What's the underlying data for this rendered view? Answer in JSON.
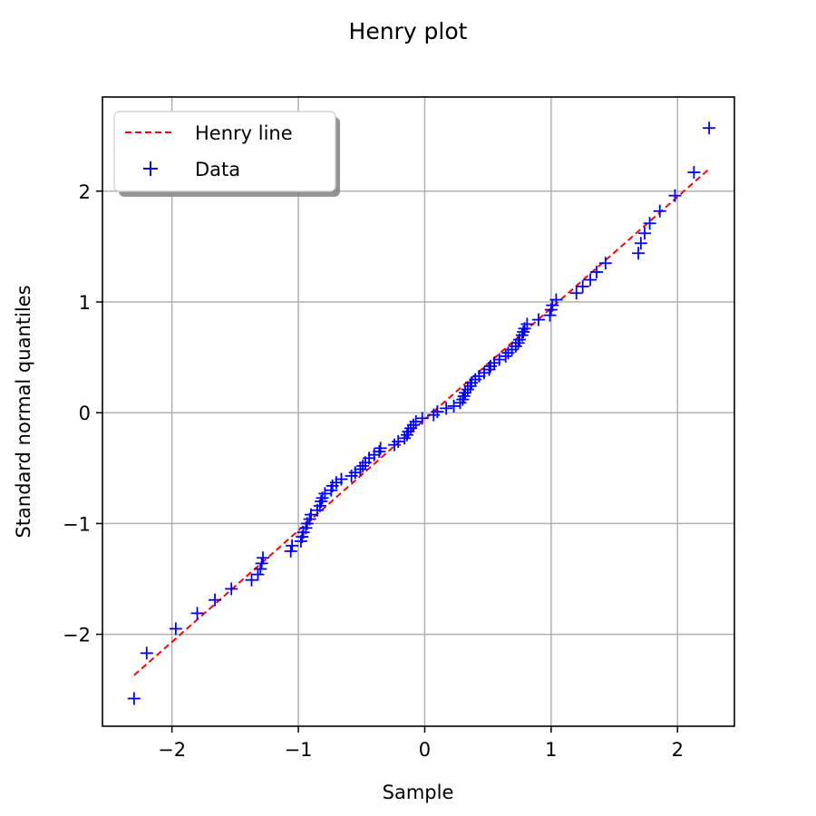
{
  "chart_data": {
    "type": "scatter",
    "title": "Henry plot",
    "xlabel": "Sample",
    "ylabel": "Standard normal quantiles",
    "xlim": [
      -2.55,
      2.45
    ],
    "ylim": [
      -2.83,
      2.85
    ],
    "xticks": [
      -2,
      -1,
      0,
      1,
      2
    ],
    "yticks": [
      -2,
      -1,
      0,
      1,
      2
    ],
    "xtick_labels": [
      "−2",
      "−1",
      "0",
      "1",
      "2"
    ],
    "ytick_labels": [
      "−2",
      "−1",
      "0",
      "1",
      "2"
    ],
    "grid": true,
    "legend_position": "top-left",
    "legend": [
      {
        "label": "Henry line",
        "style": "dashed-line",
        "color": "#ff0000"
      },
      {
        "label": "Data",
        "style": "plus-marker",
        "color": "#0000ff"
      }
    ],
    "henry_line": {
      "x": [
        -2.3,
        2.25
      ],
      "y": [
        -2.37,
        2.2
      ]
    },
    "series": [
      {
        "name": "Data",
        "marker": "+",
        "color": "#0000ff",
        "points": [
          [
            -2.3,
            -2.58
          ],
          [
            -2.2,
            -2.17
          ],
          [
            -1.97,
            -1.95
          ],
          [
            -1.8,
            -1.81
          ],
          [
            -1.66,
            -1.69
          ],
          [
            -1.53,
            -1.59
          ],
          [
            -1.37,
            -1.51
          ],
          [
            -1.32,
            -1.46
          ],
          [
            -1.3,
            -1.41
          ],
          [
            -1.29,
            -1.36
          ],
          [
            -1.28,
            -1.31
          ],
          [
            -1.06,
            -1.25
          ],
          [
            -1.05,
            -1.2
          ],
          [
            -0.98,
            -1.16
          ],
          [
            -0.97,
            -1.12
          ],
          [
            -0.96,
            -1.08
          ],
          [
            -0.94,
            -1.04
          ],
          [
            -0.93,
            -1.0
          ],
          [
            -0.91,
            -0.96
          ],
          [
            -0.9,
            -0.92
          ],
          [
            -0.85,
            -0.88
          ],
          [
            -0.83,
            -0.84
          ],
          [
            -0.82,
            -0.8
          ],
          [
            -0.81,
            -0.77
          ],
          [
            -0.79,
            -0.73
          ],
          [
            -0.74,
            -0.7
          ],
          [
            -0.73,
            -0.66
          ],
          [
            -0.7,
            -0.63
          ],
          [
            -0.66,
            -0.6
          ],
          [
            -0.58,
            -0.57
          ],
          [
            -0.55,
            -0.54
          ],
          [
            -0.51,
            -0.51
          ],
          [
            -0.49,
            -0.48
          ],
          [
            -0.47,
            -0.45
          ],
          [
            -0.44,
            -0.41
          ],
          [
            -0.4,
            -0.38
          ],
          [
            -0.36,
            -0.35
          ],
          [
            -0.35,
            -0.32
          ],
          [
            -0.24,
            -0.29
          ],
          [
            -0.21,
            -0.26
          ],
          [
            -0.16,
            -0.23
          ],
          [
            -0.14,
            -0.2
          ],
          [
            -0.13,
            -0.17
          ],
          [
            -0.11,
            -0.14
          ],
          [
            -0.09,
            -0.11
          ],
          [
            -0.07,
            -0.08
          ],
          [
            -0.02,
            -0.05
          ],
          [
            0.07,
            -0.02
          ],
          [
            0.1,
            0.01
          ],
          [
            0.17,
            0.04
          ],
          [
            0.23,
            0.06
          ],
          [
            0.28,
            0.09
          ],
          [
            0.3,
            0.12
          ],
          [
            0.31,
            0.15
          ],
          [
            0.32,
            0.18
          ],
          [
            0.34,
            0.21
          ],
          [
            0.36,
            0.24
          ],
          [
            0.37,
            0.27
          ],
          [
            0.4,
            0.3
          ],
          [
            0.43,
            0.33
          ],
          [
            0.47,
            0.36
          ],
          [
            0.51,
            0.39
          ],
          [
            0.52,
            0.42
          ],
          [
            0.55,
            0.45
          ],
          [
            0.59,
            0.48
          ],
          [
            0.64,
            0.51
          ],
          [
            0.66,
            0.54
          ],
          [
            0.69,
            0.57
          ],
          [
            0.72,
            0.6
          ],
          [
            0.74,
            0.63
          ],
          [
            0.75,
            0.66
          ],
          [
            0.77,
            0.7
          ],
          [
            0.78,
            0.73
          ],
          [
            0.79,
            0.76
          ],
          [
            0.81,
            0.8
          ],
          [
            0.9,
            0.84
          ],
          [
            0.99,
            0.88
          ],
          [
            1.0,
            0.93
          ],
          [
            1.01,
            0.97
          ],
          [
            1.04,
            1.02
          ],
          [
            1.2,
            1.08
          ],
          [
            1.25,
            1.14
          ],
          [
            1.31,
            1.2
          ],
          [
            1.36,
            1.27
          ],
          [
            1.43,
            1.35
          ],
          [
            1.69,
            1.44
          ],
          [
            1.71,
            1.53
          ],
          [
            1.74,
            1.62
          ],
          [
            1.78,
            1.71
          ],
          [
            1.86,
            1.82
          ],
          [
            1.98,
            1.96
          ],
          [
            2.13,
            2.17
          ],
          [
            2.25,
            2.57
          ]
        ]
      }
    ]
  }
}
